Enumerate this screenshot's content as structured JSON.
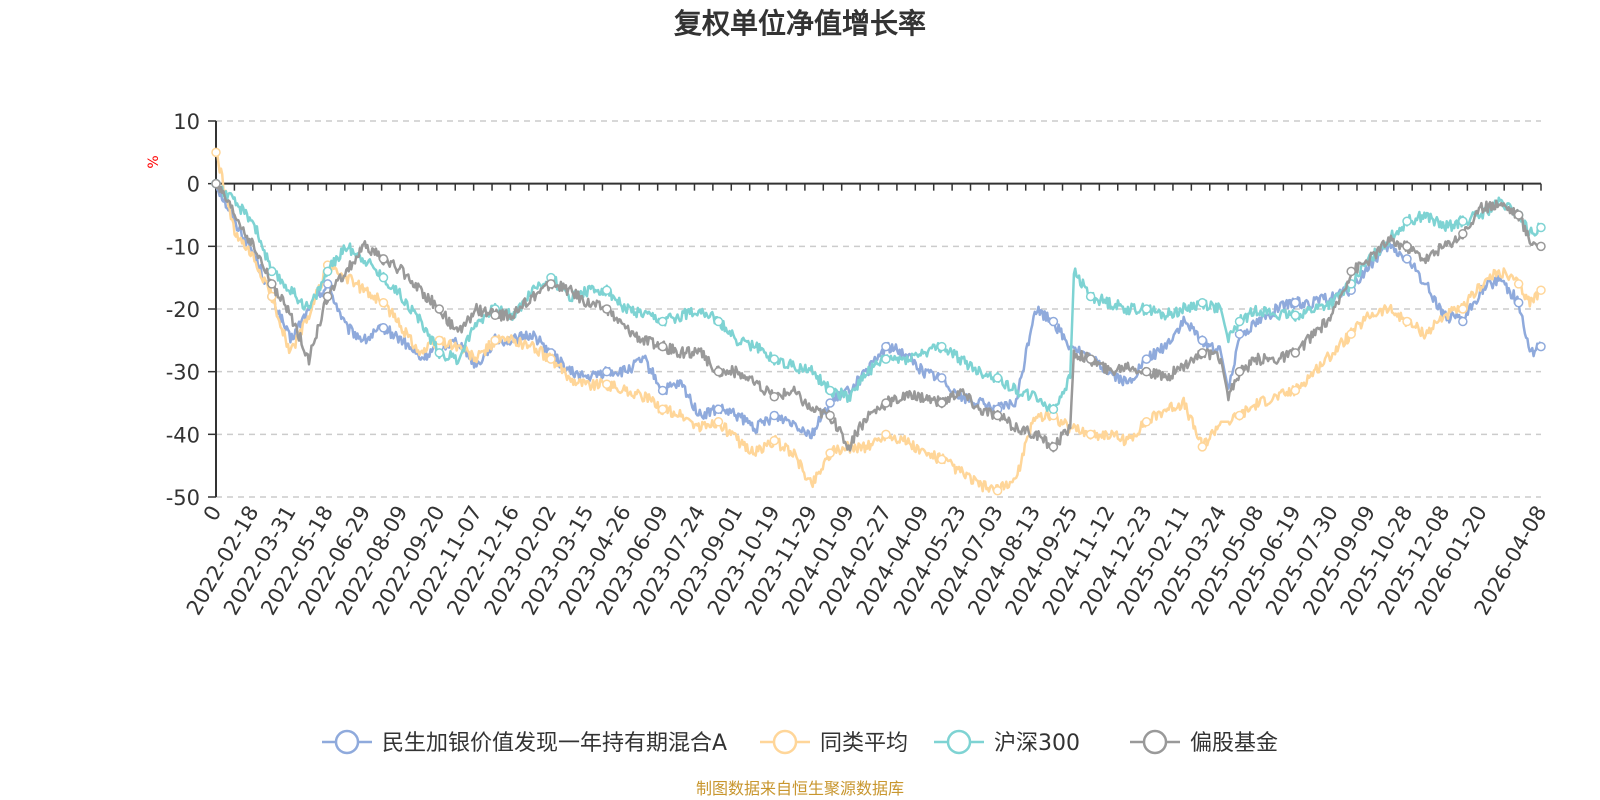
{
  "chart_data": {
    "type": "line",
    "title": "复权单位净值增长率",
    "ylabel": "%",
    "ylim": [
      -50,
      10
    ],
    "yticks": [
      10,
      0,
      -10,
      -20,
      -30,
      -40,
      -50
    ],
    "grid": true,
    "legend_position": "bottom",
    "x_tick_labels": [
      "0",
      "2022-02-18",
      "2022-03-31",
      "2022-05-18",
      "2022-06-29",
      "2022-08-09",
      "2022-09-20",
      "2022-11-07",
      "2022-12-16",
      "2023-02-02",
      "2023-03-15",
      "2023-04-26",
      "2023-06-09",
      "2023-07-24",
      "2023-09-01",
      "2023-10-19",
      "2023-11-29",
      "2024-01-09",
      "2024-02-27",
      "2024-04-09",
      "2024-05-23",
      "2024-07-03",
      "2024-08-13",
      "2024-09-25",
      "2024-11-12",
      "2024-12-23",
      "2025-02-11",
      "2025-03-24",
      "2025-05-08",
      "2025-06-19",
      "2025-07-30",
      "2025-09-09",
      "2025-10-28",
      "2025-12-08",
      "2026-01-20",
      "2026-04-08"
    ],
    "x_tick_positions": [
      0,
      1,
      2,
      3,
      4,
      5,
      6,
      7,
      8,
      9,
      10,
      11,
      12,
      13,
      14,
      15,
      16,
      17,
      18,
      19,
      20,
      21,
      22,
      23,
      24,
      25,
      26,
      27,
      28,
      29,
      30,
      31,
      32,
      33,
      34,
      35.6
    ],
    "x_max": 35.6,
    "series": [
      {
        "name": "民生加银价值发现一年持有期混合A",
        "color": "#8faadc",
        "x": [
          0,
          0.5,
          1,
          1.5,
          2,
          2.5,
          3,
          3.5,
          4,
          4.5,
          5,
          5.5,
          6,
          6.5,
          7,
          7.5,
          8,
          8.5,
          9,
          9.5,
          10,
          10.5,
          11,
          11.5,
          12,
          12.5,
          13,
          13.5,
          14,
          14.5,
          15,
          15.5,
          16,
          16.5,
          17,
          17.5,
          18,
          18.5,
          19,
          19.5,
          20,
          20.5,
          21,
          21.5,
          22,
          22.5,
          22.95,
          23.05,
          23.5,
          24,
          24.5,
          25,
          25.5,
          26,
          26.5,
          27,
          27.2,
          27.5,
          28,
          28.5,
          29,
          29.5,
          30,
          30.5,
          31,
          31.5,
          32,
          32.5,
          33,
          33.5,
          34,
          34.5,
          35,
          35.3,
          35.6
        ],
        "values": [
          0,
          -6,
          -11,
          -18,
          -25,
          -20,
          -16,
          -23,
          -25,
          -23,
          -25,
          -28,
          -26,
          -25,
          -29,
          -25,
          -25,
          -24,
          -27,
          -30,
          -31,
          -30,
          -30,
          -28,
          -33,
          -32,
          -37,
          -36,
          -37,
          -39,
          -37,
          -38,
          -40,
          -35,
          -33,
          -30,
          -26,
          -27,
          -30,
          -31,
          -34,
          -35,
          -36,
          -35,
          -20,
          -22,
          -26,
          -26,
          -28,
          -30,
          -32,
          -28,
          -26,
          -22,
          -25,
          -27,
          -33,
          -24,
          -22,
          -20,
          -19,
          -19,
          -18,
          -17,
          -13,
          -10,
          -12,
          -16,
          -21,
          -22,
          -17,
          -15,
          -19,
          -27,
          -26
        ]
      },
      {
        "name": "同类平均",
        "color": "#ffd699",
        "x": [
          0,
          0.5,
          1,
          1.5,
          2,
          2.5,
          3,
          3.5,
          4,
          4.5,
          5,
          5.5,
          6,
          6.5,
          7,
          7.5,
          8,
          8.5,
          9,
          9.5,
          10,
          10.5,
          11,
          11.5,
          12,
          12.5,
          13,
          13.5,
          14,
          14.5,
          15,
          15.5,
          16,
          16.5,
          17,
          17.5,
          18,
          18.5,
          19,
          19.5,
          20,
          20.5,
          21,
          21.5,
          22,
          22.5,
          22.95,
          23.05,
          23.5,
          24,
          24.5,
          25,
          25.5,
          26,
          26.5,
          27,
          27.2,
          27.5,
          28,
          28.5,
          29,
          29.5,
          30,
          30.5,
          31,
          31.5,
          32,
          32.5,
          33,
          33.5,
          34,
          34.5,
          35,
          35.3,
          35.6
        ],
        "values": [
          5,
          -8,
          -12,
          -18,
          -27,
          -21,
          -13,
          -15,
          -17,
          -19,
          -23,
          -27,
          -25,
          -26,
          -28,
          -25,
          -25,
          -26,
          -28,
          -31,
          -32,
          -32,
          -33,
          -34,
          -36,
          -37,
          -39,
          -38,
          -41,
          -43,
          -41,
          -43,
          -48,
          -43,
          -42,
          -42,
          -40,
          -41,
          -43,
          -44,
          -46,
          -48,
          -49,
          -47,
          -37,
          -37,
          -39,
          -39,
          -40,
          -40,
          -41,
          -38,
          -36,
          -35,
          -42,
          -38,
          -38,
          -37,
          -35,
          -34,
          -33,
          -30,
          -27,
          -24,
          -21,
          -20,
          -22,
          -24,
          -21,
          -20,
          -16,
          -14,
          -16,
          -19,
          -17
        ]
      },
      {
        "name": "沪深300",
        "color": "#7ed3d3",
        "x": [
          0,
          0.5,
          1,
          1.5,
          2,
          2.5,
          3,
          3.5,
          4,
          4.5,
          5,
          5.5,
          6,
          6.5,
          7,
          7.5,
          8,
          8.5,
          9,
          9.5,
          10,
          10.5,
          11,
          11.5,
          12,
          12.5,
          13,
          13.5,
          14,
          14.5,
          15,
          15.5,
          16,
          16.5,
          17,
          17.5,
          18,
          18.5,
          19,
          19.5,
          20,
          20.5,
          21,
          21.5,
          22,
          22.5,
          22.95,
          23.05,
          23.5,
          24,
          24.5,
          25,
          25.5,
          26,
          26.5,
          27,
          27.2,
          27.5,
          28,
          28.5,
          29,
          29.5,
          30,
          30.5,
          31,
          31.5,
          32,
          32.5,
          33,
          33.5,
          34,
          34.5,
          35,
          35.3,
          35.6
        ],
        "values": [
          0,
          -3,
          -6,
          -14,
          -17,
          -20,
          -14,
          -10,
          -12,
          -15,
          -18,
          -22,
          -27,
          -28,
          -22,
          -20,
          -21,
          -17,
          -15,
          -18,
          -17,
          -17,
          -20,
          -21,
          -22,
          -21,
          -20,
          -22,
          -25,
          -26,
          -28,
          -29,
          -30,
          -33,
          -34,
          -30,
          -28,
          -28,
          -27,
          -26,
          -28,
          -30,
          -31,
          -33,
          -34,
          -36,
          -31,
          -14,
          -18,
          -19,
          -20,
          -20,
          -21,
          -20,
          -19,
          -20,
          -25,
          -22,
          -20,
          -21,
          -21,
          -20,
          -19,
          -16,
          -12,
          -9,
          -6,
          -5,
          -7,
          -6,
          -5,
          -3,
          -5,
          -8,
          -7
        ]
      },
      {
        "name": "偏股基金",
        "color": "#999999",
        "x": [
          0,
          0.5,
          1,
          1.5,
          2,
          2.5,
          3,
          3.5,
          4,
          4.5,
          5,
          5.5,
          6,
          6.5,
          7,
          7.5,
          8,
          8.5,
          9,
          9.5,
          10,
          10.5,
          11,
          11.5,
          12,
          12.5,
          13,
          13.5,
          14,
          14.5,
          15,
          15.5,
          16,
          16.5,
          17,
          17.5,
          18,
          18.5,
          19,
          19.5,
          20,
          20.5,
          21,
          21.5,
          22,
          22.5,
          22.95,
          23.05,
          23.5,
          24,
          24.5,
          25,
          25.5,
          26,
          26.5,
          27,
          27.2,
          27.5,
          28,
          28.5,
          29,
          29.5,
          30,
          30.5,
          31,
          31.5,
          32,
          32.5,
          33,
          33.5,
          34,
          34.5,
          35,
          35.3,
          35.6
        ],
        "values": [
          0,
          -5,
          -10,
          -16,
          -21,
          -28,
          -18,
          -14,
          -10,
          -12,
          -14,
          -17,
          -20,
          -24,
          -20,
          -21,
          -21,
          -18,
          -16,
          -17,
          -19,
          -20,
          -23,
          -25,
          -26,
          -27,
          -27,
          -30,
          -30,
          -32,
          -34,
          -33,
          -36,
          -37,
          -42,
          -37,
          -35,
          -34,
          -34,
          -35,
          -33,
          -36,
          -37,
          -39,
          -40,
          -42,
          -39,
          -27,
          -28,
          -30,
          -29,
          -30,
          -31,
          -29,
          -27,
          -28,
          -34,
          -30,
          -28,
          -28,
          -27,
          -24,
          -21,
          -14,
          -12,
          -9,
          -10,
          -12,
          -10,
          -8,
          -4,
          -3,
          -5,
          -9,
          -10
        ]
      }
    ]
  },
  "legend": {
    "items": [
      {
        "label": "民生加银价值发现一年持有期混合A",
        "color": "#8faadc"
      },
      {
        "label": "同类平均",
        "color": "#ffd699"
      },
      {
        "label": "沪深300",
        "color": "#7ed3d3"
      },
      {
        "label": "偏股基金",
        "color": "#999999"
      }
    ]
  },
  "footer": {
    "source": "制图数据来自恒生聚源数据库",
    "color": "#c8962e"
  }
}
